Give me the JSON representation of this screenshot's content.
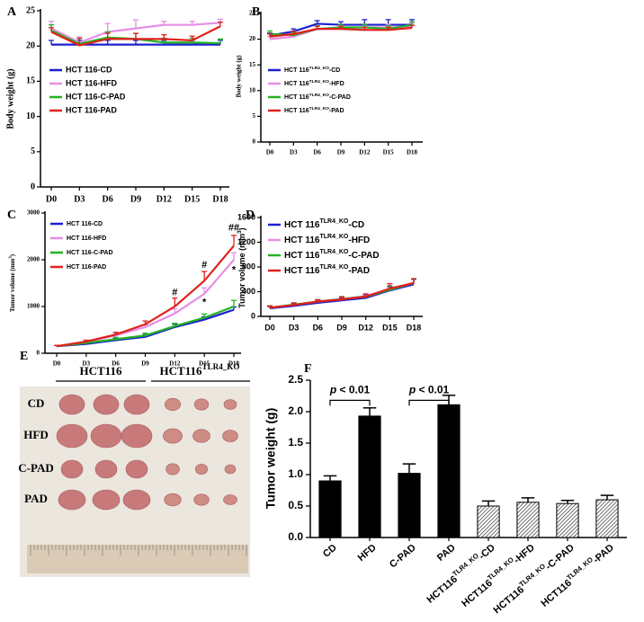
{
  "chart_data": [
    {
      "type": "line",
      "label": "A",
      "y_label": "Body weight (g)",
      "categories": [
        "D0",
        "D3",
        "D6",
        "D9",
        "D12",
        "D15",
        "D18"
      ],
      "ylim": [
        0,
        25
      ],
      "yticks": [
        0,
        5,
        10,
        15,
        20,
        25
      ],
      "series": [
        {
          "name": "HCT 116-CD",
          "color": "#1f1fd0",
          "values": [
            20.2,
            20.2,
            20.2,
            20.2,
            20.2,
            20.2,
            20.2
          ],
          "errors": [
            0.6,
            0.6,
            0.6,
            0.6,
            0.6,
            0.6,
            0.6
          ]
        },
        {
          "name": "HCT 116-HFD",
          "color": "#e58ee5",
          "values": [
            22.5,
            20.5,
            22,
            22.5,
            23,
            23,
            23.3
          ],
          "errors": [
            1,
            0.8,
            1.2,
            1.2,
            0.5,
            0.5,
            0.5
          ]
        },
        {
          "name": "HCT 116-C-PAD",
          "color": "#22b422",
          "values": [
            22.2,
            20.3,
            21.2,
            21,
            20.5,
            20.5,
            20.4
          ],
          "errors": [
            0.8,
            0.8,
            0.8,
            0.8,
            0.6,
            0.6,
            0.6
          ]
        },
        {
          "name": "HCT 116-PAD",
          "color": "#e0201b",
          "values": [
            22,
            20.1,
            21,
            21,
            21,
            20.8,
            22.8
          ],
          "errors": [
            0.6,
            1,
            0.8,
            0.8,
            0.6,
            0.6,
            0.6
          ]
        }
      ]
    },
    {
      "type": "line",
      "label": "B",
      "y_label": "Body weight (g)",
      "categories": [
        "D0",
        "D3",
        "D6",
        "D9",
        "D12",
        "D15",
        "D18"
      ],
      "ylim": [
        0,
        25
      ],
      "yticks": [
        0,
        5,
        10,
        15,
        20,
        25
      ],
      "series": [
        {
          "name": [
            "HCT 116",
            "TLR4_KO",
            "-CD"
          ],
          "color": "#1f1fd0",
          "values": [
            20.7,
            21.5,
            23,
            22.8,
            22.8,
            22.8,
            22.8
          ],
          "errors": [
            0.5,
            0.5,
            0.6,
            0.6,
            1,
            1,
            1
          ]
        },
        {
          "name": [
            "HCT 116",
            "TLR4_KO",
            "-HFD"
          ],
          "color": "#e58ee5",
          "values": [
            20,
            20.5,
            22,
            22,
            22.3,
            22.3,
            22.5
          ],
          "errors": [
            0.5,
            0.5,
            0.6,
            0.6,
            0.6,
            0.6,
            0.6
          ]
        },
        {
          "name": [
            "HCT 116",
            "TLR4_KO",
            "-C-PAD"
          ],
          "color": "#22b422",
          "values": [
            21,
            20.8,
            22,
            22.3,
            22.3,
            22,
            22.8
          ],
          "errors": [
            0.6,
            0.5,
            0.6,
            0.6,
            0.6,
            0.6,
            0.6
          ]
        },
        {
          "name": [
            "HCT 116",
            "TLR4_KO",
            "-PAD"
          ],
          "color": "#e0201b",
          "values": [
            20.5,
            21,
            22,
            22,
            21.8,
            21.8,
            22.2
          ],
          "errors": [
            0.5,
            0.5,
            0.5,
            0.5,
            0.5,
            0.5,
            0.5
          ]
        }
      ]
    },
    {
      "type": "line",
      "label": "C",
      "y_label": [
        "Tumor volume (mm",
        "3",
        ")"
      ],
      "categories": [
        "D0",
        "D3",
        "D6",
        "D9",
        "D12",
        "D15",
        "D18"
      ],
      "ylim": [
        0,
        3000
      ],
      "yticks": [
        0,
        1000,
        2000,
        3000
      ],
      "series": [
        {
          "name": "HCT 116-CD",
          "color": "#1f1fd0",
          "values": [
            150,
            200,
            280,
            350,
            560,
            720,
            930
          ],
          "errors": [
            20,
            30,
            40,
            50,
            60,
            60,
            60
          ]
        },
        {
          "name": "HCT 116-HFD",
          "color": "#e58ee5",
          "values": [
            150,
            240,
            380,
            560,
            850,
            1270,
            2000
          ],
          "errors": [
            20,
            30,
            40,
            50,
            100,
            130,
            150
          ]
        },
        {
          "name": "HCT 116-C-PAD",
          "color": "#22b422",
          "values": [
            150,
            220,
            300,
            380,
            580,
            760,
            1000
          ],
          "errors": [
            20,
            30,
            40,
            50,
            60,
            80,
            130
          ]
        },
        {
          "name": "HCT 116-PAD",
          "color": "#e0201b",
          "values": [
            150,
            250,
            400,
            620,
            1000,
            1550,
            2300
          ],
          "errors": [
            20,
            30,
            50,
            70,
            180,
            200,
            220
          ]
        }
      ],
      "annotations": [
        {
          "text": "#",
          "x": "D12",
          "y": 1300,
          "color": "#e0201b"
        },
        {
          "text": "#",
          "x": "D15",
          "y": 1880,
          "color": "#e0201b"
        },
        {
          "text": "##",
          "x": "D18",
          "y": 2680,
          "color": "#e0201b"
        },
        {
          "text": "*",
          "x": "D15",
          "y": 1080,
          "color": "#e58ee5"
        },
        {
          "text": "*",
          "x": "D18",
          "y": 1780,
          "color": "#e58ee5"
        }
      ]
    },
    {
      "type": "line",
      "label": "D",
      "y_label": [
        "Tumor volume (mm",
        "3",
        ")"
      ],
      "categories": [
        "D0",
        "D3",
        "D6",
        "D9",
        "D12",
        "D15",
        "D18"
      ],
      "ylim": [
        0,
        1600
      ],
      "yticks": [
        0,
        400,
        800,
        1200,
        1600
      ],
      "series": [
        {
          "name": [
            "HCT 116",
            "TLR4_KO",
            "-CD"
          ],
          "color": "#1f1fd0",
          "values": [
            130,
            170,
            220,
            260,
            300,
            420,
            520
          ],
          "errors": [
            30,
            30,
            30,
            40,
            40,
            60,
            80
          ]
        },
        {
          "name": [
            "HCT 116",
            "TLR4_KO",
            "-HFD"
          ],
          "color": "#e58ee5",
          "values": [
            140,
            190,
            240,
            280,
            330,
            440,
            540
          ],
          "errors": [
            30,
            30,
            30,
            40,
            40,
            60,
            70
          ]
        },
        {
          "name": [
            "HCT 116",
            "TLR4_KO",
            "-C-PAD"
          ],
          "color": "#22b422",
          "values": [
            140,
            190,
            240,
            280,
            320,
            430,
            540
          ],
          "errors": [
            30,
            30,
            30,
            40,
            40,
            60,
            70
          ]
        },
        {
          "name": [
            "HCT 116",
            "TLR4_KO",
            "-PAD"
          ],
          "color": "#e0201b",
          "values": [
            140,
            185,
            240,
            275,
            320,
            450,
            540
          ],
          "errors": [
            30,
            30,
            30,
            40,
            40,
            80,
            70
          ]
        }
      ]
    },
    {
      "type": "bar",
      "label": "F",
      "y_label": "Tumor weight (g)",
      "categories": [
        "CD",
        "HFD",
        "C-PAD",
        "PAD",
        [
          "HCT116",
          "TLR4_KO",
          "-CD"
        ],
        [
          "HCT116",
          "TLR4_KO",
          "-HFD"
        ],
        [
          "HCT116",
          "TLR4_KO",
          "-C-PAD"
        ],
        [
          "HCT116",
          "TLR4_KO",
          "-PAD"
        ]
      ],
      "values": [
        0.9,
        1.93,
        1.02,
        2.11,
        0.5,
        0.56,
        0.54,
        0.6
      ],
      "errors": [
        0.08,
        0.13,
        0.15,
        0.15,
        0.08,
        0.07,
        0.05,
        0.07
      ],
      "hatched": [
        false,
        false,
        false,
        false,
        true,
        true,
        true,
        true
      ],
      "color": "#000000",
      "ylim": [
        0,
        2.5
      ],
      "yticks": [
        {
          "value": 0,
          "label": "0.0"
        },
        0.5,
        {
          "value": 1,
          "label": "1.0"
        },
        1.5,
        {
          "value": 2,
          "label": "2.0"
        },
        2.5
      ],
      "annotations": [
        {
          "text": [
            "p",
            " < 0.01"
          ],
          "from": "CD",
          "to": "HFD",
          "y": 2.18
        },
        {
          "text": [
            "p",
            " < 0.01"
          ],
          "from": "C-PAD",
          "to": "PAD",
          "y": 2.18
        }
      ]
    }
  ],
  "photo_panel": {
    "label": "E",
    "group_labels": [
      "HCT116",
      [
        "HCT116",
        "TLR4_KO",
        ""
      ]
    ],
    "row_labels": [
      "CD",
      "HFD",
      "C-PAD",
      "PAD"
    ]
  }
}
